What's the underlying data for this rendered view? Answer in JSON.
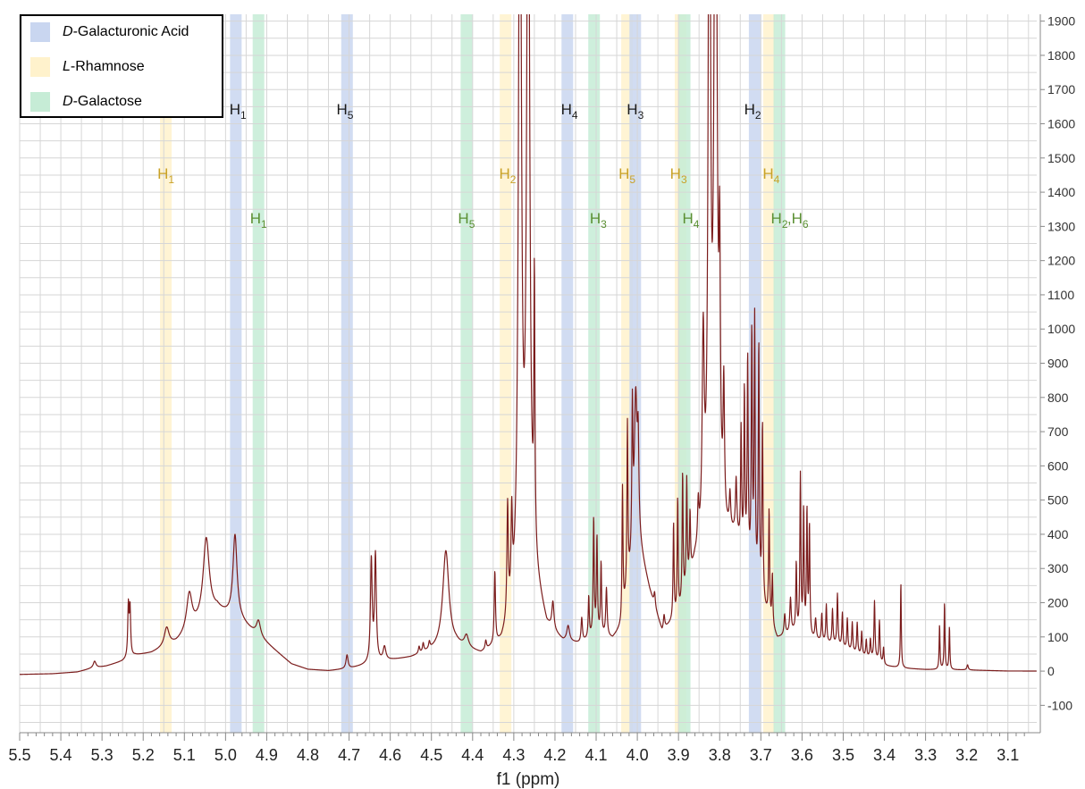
{
  "chart_data": {
    "type": "line",
    "xlabel": "f1 (ppm)",
    "xlim": [
      5.5,
      3.03
    ],
    "ylim": [
      -180,
      1920
    ],
    "x_ticks": [
      "5.5",
      "5.4",
      "5.3",
      "5.2",
      "5.1",
      "5.0",
      "4.9",
      "4.8",
      "4.7",
      "4.6",
      "4.5",
      "4.4",
      "4.3",
      "4.2",
      "4.1",
      "4.0",
      "3.9",
      "3.8",
      "3.7",
      "3.6",
      "3.5",
      "3.4",
      "3.3",
      "3.2",
      "3.1"
    ],
    "y_ticks": [
      "-100",
      "0",
      "100",
      "200",
      "300",
      "400",
      "500",
      "600",
      "700",
      "800",
      "900",
      "1000",
      "1100",
      "1200",
      "1300",
      "1400",
      "1500",
      "1600",
      "1700",
      "1800",
      "1900"
    ],
    "grid": true,
    "legend_position": "top-left",
    "legend": [
      {
        "prefix": "D",
        "name": "-Galacturonic Acid",
        "color": "#c9d6f0"
      },
      {
        "prefix": "L",
        "name": "-Rhamnose",
        "color": "#fff2cc"
      },
      {
        "prefix": "D",
        "name": "-Galactose",
        "color": "#c6ecd6"
      }
    ],
    "highlight_bands": [
      {
        "ppm": 5.145,
        "group": "rhamnose"
      },
      {
        "ppm": 4.975,
        "group": "galacturonic"
      },
      {
        "ppm": 4.92,
        "group": "galactose"
      },
      {
        "ppm": 4.705,
        "group": "galacturonic"
      },
      {
        "ppm": 4.415,
        "group": "galactose"
      },
      {
        "ppm": 4.32,
        "group": "rhamnose"
      },
      {
        "ppm": 4.17,
        "group": "galacturonic"
      },
      {
        "ppm": 4.105,
        "group": "galactose"
      },
      {
        "ppm": 4.025,
        "group": "rhamnose"
      },
      {
        "ppm": 4.005,
        "group": "galacturonic"
      },
      {
        "ppm": 3.895,
        "group": "rhamnose"
      },
      {
        "ppm": 3.885,
        "group": "galactose"
      },
      {
        "ppm": 3.715,
        "group": "galacturonic"
      },
      {
        "ppm": 3.68,
        "group": "rhamnose"
      },
      {
        "ppm": 3.655,
        "group": "galactose"
      }
    ],
    "annotations": [
      {
        "text": "H",
        "sub": "1",
        "ppm": 4.97,
        "level": 1,
        "group": "galacturonic"
      },
      {
        "text": "H",
        "sub": "5",
        "ppm": 4.71,
        "level": 1,
        "group": "galacturonic"
      },
      {
        "text": "H",
        "sub": "4",
        "ppm": 4.165,
        "level": 1,
        "group": "galacturonic"
      },
      {
        "text": "H",
        "sub": "3",
        "ppm": 4.005,
        "level": 1,
        "group": "galacturonic"
      },
      {
        "text": "H",
        "sub": "2",
        "ppm": 3.72,
        "level": 1,
        "group": "galacturonic"
      },
      {
        "text": "H",
        "sub": "1",
        "ppm": 5.145,
        "level": 2,
        "group": "rhamnose"
      },
      {
        "text": "H",
        "sub": "2",
        "ppm": 4.315,
        "level": 2,
        "group": "rhamnose"
      },
      {
        "text": "H",
        "sub": "5",
        "ppm": 4.025,
        "level": 2,
        "group": "rhamnose"
      },
      {
        "text": "H",
        "sub": "3",
        "ppm": 3.9,
        "level": 2,
        "group": "rhamnose"
      },
      {
        "text": "H",
        "sub": "4",
        "ppm": 3.675,
        "level": 2,
        "group": "rhamnose"
      },
      {
        "text": "H",
        "sub": "1",
        "ppm": 4.92,
        "level": 3,
        "group": "galactose"
      },
      {
        "text": "H",
        "sub": "5",
        "ppm": 4.415,
        "level": 3,
        "group": "galactose"
      },
      {
        "text": "H",
        "sub": "3",
        "ppm": 4.095,
        "level": 3,
        "group": "galactose"
      },
      {
        "text": "H",
        "sub": "4",
        "ppm": 3.87,
        "level": 3,
        "group": "galactose"
      },
      {
        "text": "H",
        "sub": "2",
        "ppm": 3.655,
        "level": 3,
        "group": "galactose"
      },
      {
        "text": ",H",
        "sub": "6",
        "ppm": 3.61,
        "level": 3,
        "group": "galactose"
      }
    ],
    "label_colors": {
      "galacturonic": "#1a1a1a",
      "rhamnose": "#c9a227",
      "galactose": "#5a8f32"
    },
    "line_color": "#7b1c1c",
    "baseline_points": [
      [
        5.5,
        -10
      ],
      [
        5.42,
        -8
      ],
      [
        5.36,
        -3
      ],
      [
        5.33,
        6
      ],
      [
        5.29,
        14
      ],
      [
        5.25,
        28
      ],
      [
        5.22,
        45
      ],
      [
        5.18,
        52
      ],
      [
        5.12,
        80
      ],
      [
        5.02,
        175
      ],
      [
        4.96,
        140
      ],
      [
        4.88,
        60
      ],
      [
        4.84,
        20
      ],
      [
        4.8,
        4
      ],
      [
        4.75,
        0
      ],
      [
        4.7,
        6
      ],
      [
        4.66,
        16
      ],
      [
        4.6,
        30
      ],
      [
        4.55,
        38
      ],
      [
        4.5,
        55
      ],
      [
        4.44,
        70
      ],
      [
        4.38,
        45
      ],
      [
        4.35,
        60
      ],
      [
        4.33,
        70
      ],
      [
        4.25,
        245
      ],
      [
        4.22,
        120
      ],
      [
        4.18,
        80
      ],
      [
        4.14,
        75
      ],
      [
        4.1,
        100
      ],
      [
        4.06,
        90
      ],
      [
        4.04,
        120
      ],
      [
        4.0,
        380
      ],
      [
        3.97,
        230
      ],
      [
        3.94,
        110
      ],
      [
        3.9,
        150
      ],
      [
        3.86,
        300
      ],
      [
        3.8,
        360
      ],
      [
        3.76,
        380
      ],
      [
        3.73,
        280
      ],
      [
        3.7,
        190
      ],
      [
        3.66,
        90
      ],
      [
        3.62,
        110
      ],
      [
        3.58,
        90
      ],
      [
        3.52,
        75
      ],
      [
        3.46,
        45
      ],
      [
        3.42,
        30
      ],
      [
        3.4,
        15
      ],
      [
        3.36,
        8
      ],
      [
        3.3,
        4
      ],
      [
        3.2,
        3
      ],
      [
        3.1,
        0
      ],
      [
        3.03,
        0
      ]
    ],
    "peaks": [
      [
        5.318,
        20,
        0.004
      ],
      [
        5.236,
        150,
        0.0018
      ],
      [
        5.232,
        140,
        0.0018
      ],
      [
        5.143,
        55,
        0.007
      ],
      [
        5.088,
        110,
        0.008
      ],
      [
        5.047,
        235,
        0.009
      ],
      [
        4.977,
        245,
        0.006
      ],
      [
        4.92,
        45,
        0.006
      ],
      [
        4.705,
        40,
        0.003
      ],
      [
        4.646,
        300,
        0.0025
      ],
      [
        4.636,
        310,
        0.0025
      ],
      [
        4.614,
        40,
        0.004
      ],
      [
        4.53,
        20,
        0.002
      ],
      [
        4.52,
        25,
        0.002
      ],
      [
        4.505,
        20,
        0.002
      ],
      [
        4.465,
        285,
        0.009
      ],
      [
        4.415,
        35,
        0.006
      ],
      [
        4.368,
        25,
        0.002
      ],
      [
        4.346,
        210,
        0.0018
      ],
      [
        4.315,
        330,
        0.002
      ],
      [
        4.305,
        250,
        0.002
      ],
      [
        4.285,
        2500,
        0.004
      ],
      [
        4.265,
        2500,
        0.004
      ],
      [
        4.25,
        770,
        0.0015
      ],
      [
        4.205,
        80,
        0.003
      ],
      [
        4.168,
        45,
        0.004
      ],
      [
        4.135,
        70,
        0.002
      ],
      [
        4.118,
        120,
        0.0015
      ],
      [
        4.106,
        340,
        0.0015
      ],
      [
        4.098,
        280,
        0.0015
      ],
      [
        4.088,
        210,
        0.0015
      ],
      [
        4.075,
        140,
        0.002
      ],
      [
        4.036,
        380,
        0.0014
      ],
      [
        4.024,
        480,
        0.0014
      ],
      [
        4.012,
        420,
        0.0016
      ],
      [
        4.004,
        430,
        0.004
      ],
      [
        3.998,
        240,
        0.002
      ],
      [
        3.958,
        40,
        0.002
      ],
      [
        3.935,
        40,
        0.002
      ],
      [
        3.912,
        280,
        0.0014
      ],
      [
        3.902,
        340,
        0.0014
      ],
      [
        3.89,
        370,
        0.0014
      ],
      [
        3.88,
        310,
        0.0014
      ],
      [
        3.872,
        180,
        0.0015
      ],
      [
        3.852,
        120,
        0.002
      ],
      [
        3.84,
        580,
        0.003
      ],
      [
        3.825,
        2500,
        0.003
      ],
      [
        3.81,
        2500,
        0.004
      ],
      [
        3.8,
        650,
        0.002
      ],
      [
        3.79,
        380,
        0.002
      ],
      [
        3.775,
        100,
        0.002
      ],
      [
        3.76,
        150,
        0.002
      ],
      [
        3.748,
        340,
        0.0014
      ],
      [
        3.74,
        480,
        0.0014
      ],
      [
        3.732,
        600,
        0.0015
      ],
      [
        3.722,
        700,
        0.0015
      ],
      [
        3.715,
        760,
        0.0015
      ],
      [
        3.705,
        720,
        0.0015
      ],
      [
        3.696,
        520,
        0.0015
      ],
      [
        3.68,
        320,
        0.0014
      ],
      [
        3.672,
        150,
        0.0014
      ],
      [
        3.642,
        60,
        0.002
      ],
      [
        3.628,
        100,
        0.002
      ],
      [
        3.614,
        200,
        0.0014
      ],
      [
        3.604,
        460,
        0.0014
      ],
      [
        3.596,
        360,
        0.0014
      ],
      [
        3.588,
        360,
        0.0014
      ],
      [
        3.582,
        320,
        0.0014
      ],
      [
        3.567,
        60,
        0.002
      ],
      [
        3.552,
        80,
        0.0015
      ],
      [
        3.541,
        110,
        0.0015
      ],
      [
        3.526,
        100,
        0.0015
      ],
      [
        3.514,
        150,
        0.0015
      ],
      [
        3.502,
        100,
        0.0015
      ],
      [
        3.49,
        90,
        0.0015
      ],
      [
        3.478,
        85,
        0.0015
      ],
      [
        3.466,
        90,
        0.0015
      ],
      [
        3.455,
        70,
        0.0015
      ],
      [
        3.444,
        50,
        0.0015
      ],
      [
        3.434,
        55,
        0.0015
      ],
      [
        3.424,
        170,
        0.0015
      ],
      [
        3.412,
        120,
        0.0015
      ],
      [
        3.402,
        50,
        0.0015
      ],
      [
        3.36,
        250,
        0.0012
      ],
      [
        3.266,
        130,
        0.0012
      ],
      [
        3.254,
        195,
        0.0012
      ],
      [
        3.242,
        125,
        0.0012
      ],
      [
        3.198,
        15,
        0.002
      ]
    ],
    "truncated_peaks_ppm": [
      4.285,
      4.265,
      3.825,
      3.81
    ]
  }
}
